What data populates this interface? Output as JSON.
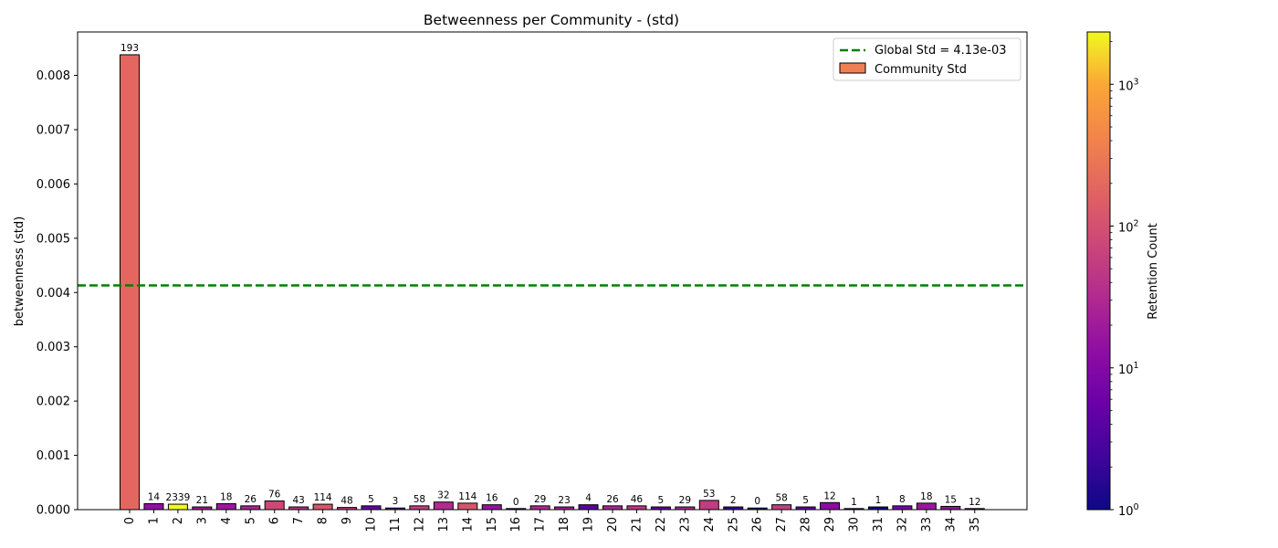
{
  "chart_data": {
    "type": "bar",
    "title": "Betweenness per Community - (std)",
    "xlabel": "",
    "ylabel": "betweenness (std)",
    "categories": [
      "0",
      "1",
      "2",
      "3",
      "4",
      "5",
      "6",
      "7",
      "8",
      "9",
      "10",
      "11",
      "12",
      "13",
      "14",
      "15",
      "16",
      "17",
      "18",
      "19",
      "20",
      "21",
      "22",
      "23",
      "24",
      "25",
      "26",
      "27",
      "28",
      "29",
      "30",
      "31",
      "32",
      "33",
      "34",
      "35"
    ],
    "values": [
      0.00838,
      0.00011,
      0.0001,
      5e-05,
      0.00011,
      7e-05,
      0.00016,
      5e-05,
      0.0001,
      4e-05,
      7e-05,
      3e-05,
      7e-05,
      0.00014,
      0.00012,
      9e-05,
      2e-05,
      7e-05,
      5e-05,
      9e-05,
      7e-05,
      7e-05,
      5e-05,
      5e-05,
      0.00017,
      5e-05,
      3e-05,
      9e-05,
      5e-05,
      0.00013,
      2e-05,
      5e-05,
      7e-05,
      0.00012,
      6e-05,
      2e-05
    ],
    "bar_labels": [
      "193",
      "14",
      "2339",
      "21",
      "18",
      "26",
      "76",
      "43",
      "114",
      "48",
      "5",
      "3",
      "58",
      "32",
      "114",
      "16",
      "0",
      "29",
      "23",
      "4",
      "26",
      "46",
      "5",
      "29",
      "53",
      "2",
      "0",
      "58",
      "5",
      "12",
      "1",
      "1",
      "8",
      "18",
      "15",
      "12"
    ],
    "ylim": [
      0,
      0.0088
    ],
    "yticks": [
      "0.000",
      "0.001",
      "0.002",
      "0.003",
      "0.004",
      "0.005",
      "0.006",
      "0.007",
      "0.008"
    ],
    "reference_line": {
      "label": "Global Std = 4.13e-03",
      "value": 0.00413,
      "color": "#008000",
      "style": "dashed"
    },
    "legend": {
      "position": "top-right",
      "entries": [
        "Global Std = 4.13e-03",
        "Community Std"
      ]
    },
    "colorbar": {
      "label": "Retention Count",
      "scale": "log",
      "range": [
        1,
        2339
      ],
      "colormap": "plasma",
      "ticks": [
        "10",
        "10",
        "10",
        "10"
      ],
      "tick_exponents": [
        "0",
        "1",
        "2",
        "3"
      ]
    },
    "legend_bar_color": "#ef7f54",
    "grid": false
  }
}
